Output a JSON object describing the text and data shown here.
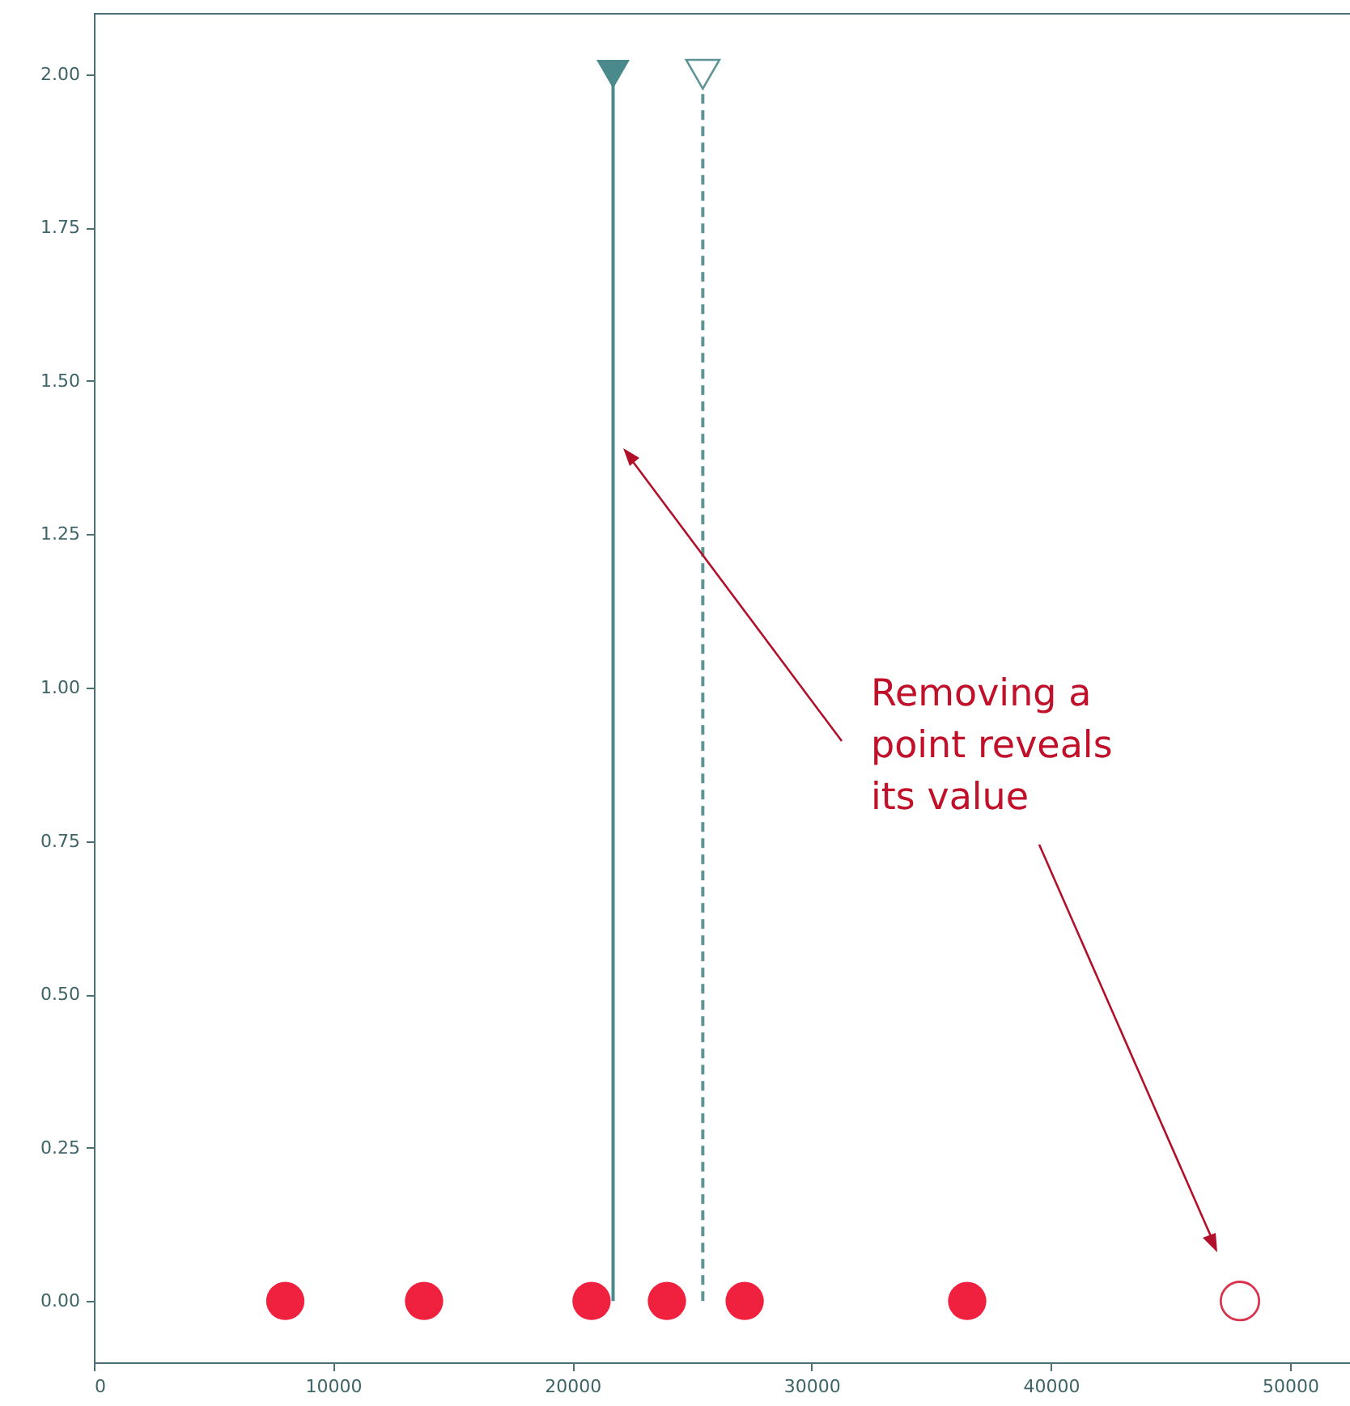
{
  "chart_data": {
    "type": "scatter",
    "xlim": [
      0,
      52500
    ],
    "ylim": [
      -0.1,
      2.1
    ],
    "xticks": [
      0,
      10000,
      20000,
      30000,
      40000,
      50000
    ],
    "yticks": [
      {
        "value": 0,
        "label": "0.00"
      },
      {
        "value": 0.25,
        "label": "0.25"
      },
      {
        "value": 0.5,
        "label": "0.50"
      },
      {
        "value": 0.75,
        "label": "0.75"
      },
      {
        "value": 1,
        "label": "1.00"
      },
      {
        "value": 1.25,
        "label": "1.25"
      },
      {
        "value": 1.5,
        "label": "1.50"
      },
      {
        "value": 1.75,
        "label": "1.75"
      },
      {
        "value": 2,
        "label": "2.00"
      }
    ],
    "grid": false,
    "marker": "circle",
    "series": [
      {
        "color": "#f0213f",
        "x": [
          8000,
          13800,
          20800,
          23950,
          27200,
          36500
        ],
        "values": [
          0,
          0,
          0,
          0,
          0,
          0
        ]
      },
      {
        "color": "#d9354f",
        "x": [
          47900
        ],
        "values": [
          0
        ]
      },
      {
        "type": "line",
        "color": "#4a8a8c",
        "marker": "triangle",
        "line_style": "solid",
        "x": [
          21700,
          21700
        ],
        "values": [
          0,
          2
        ]
      },
      {
        "type": "line",
        "color": "#5d9496",
        "marker": "triangle",
        "line_style": "dashed",
        "x": [
          25450,
          25450
        ],
        "values": [
          0,
          2
        ]
      }
    ],
    "annotations": [
      "Removing a point reveals its value"
    ]
  }
}
